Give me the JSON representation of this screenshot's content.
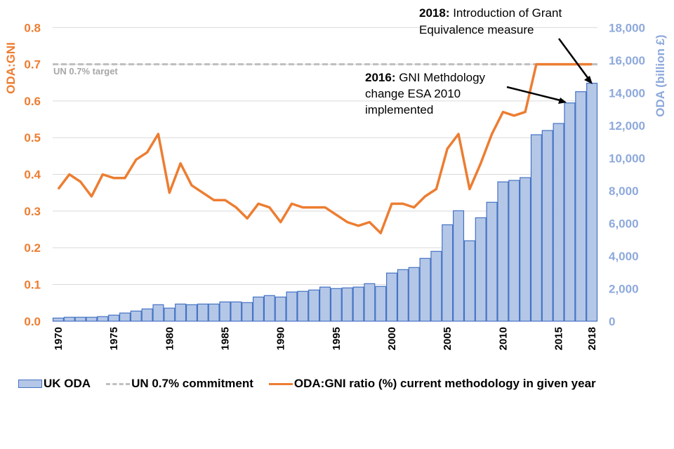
{
  "chart_data": {
    "type": "bar+line",
    "title": "",
    "x": [
      1970,
      1971,
      1972,
      1973,
      1974,
      1975,
      1976,
      1977,
      1978,
      1979,
      1980,
      1981,
      1982,
      1983,
      1984,
      1985,
      1986,
      1987,
      1988,
      1989,
      1990,
      1991,
      1992,
      1993,
      1994,
      1995,
      1996,
      1997,
      1998,
      1999,
      2000,
      2001,
      2002,
      2003,
      2004,
      2005,
      2006,
      2007,
      2008,
      2009,
      2010,
      2011,
      2012,
      2013,
      2014,
      2015,
      2016,
      2017,
      2018
    ],
    "x_tick_labels": [
      "1970",
      "1975",
      "1980",
      "1985",
      "1990",
      "1995",
      "2000",
      "2005",
      "2010",
      "2015",
      "2018"
    ],
    "series": [
      {
        "name": "UK ODA",
        "type": "bar",
        "axis": "right",
        "color": "#B4C7E7",
        "edge_color": "#4472C4",
        "values": [
          190,
          240,
          240,
          240,
          280,
          370,
          500,
          620,
          750,
          1010,
          800,
          1050,
          1010,
          1050,
          1050,
          1180,
          1180,
          1140,
          1480,
          1570,
          1480,
          1790,
          1830,
          1910,
          2090,
          2000,
          2040,
          2090,
          2300,
          2130,
          2950,
          3160,
          3290,
          3850,
          4280,
          5910,
          6770,
          4930,
          6340,
          7290,
          8540,
          8630,
          8800,
          11430,
          11690,
          12120,
          13380,
          14070,
          14590
        ]
      },
      {
        "name": "UN 0.7% commitment",
        "type": "line-dashed",
        "axis": "left",
        "color": "#BFBFBF",
        "values": [
          0.7
        ]
      },
      {
        "name": "ODA:GNI ratio (%) current methodology in given year",
        "type": "line",
        "axis": "left",
        "color": "#ED7D31",
        "values": [
          0.36,
          0.4,
          0.38,
          0.34,
          0.4,
          0.39,
          0.39,
          0.44,
          0.46,
          0.51,
          0.35,
          0.43,
          0.37,
          0.35,
          0.33,
          0.33,
          0.31,
          0.28,
          0.32,
          0.31,
          0.27,
          0.32,
          0.31,
          0.31,
          0.31,
          0.29,
          0.27,
          0.26,
          0.27,
          0.24,
          0.32,
          0.32,
          0.31,
          0.34,
          0.36,
          0.47,
          0.51,
          0.36,
          0.43,
          0.51,
          0.57,
          0.56,
          0.57,
          0.7,
          0.7,
          0.7,
          0.7,
          0.7,
          0.7
        ]
      }
    ],
    "y_left": {
      "label": "ODA:GNI",
      "range": [
        0,
        0.8
      ],
      "ticks": [
        "0.0",
        "0.1",
        "0.2",
        "0.3",
        "0.4",
        "0.5",
        "0.6",
        "0.7",
        "0.8"
      ],
      "color": "#ED7D31"
    },
    "y_right": {
      "label": "ODA (billion £)",
      "range": [
        0,
        18000
      ],
      "ticks": [
        "0",
        "2,000",
        "4,000",
        "6,000",
        "8,000",
        "10,000",
        "12,000",
        "14,000",
        "16,000",
        "18,000"
      ],
      "color": "#8EA9DB"
    },
    "grid": true,
    "legend_position": "bottom-left",
    "annotations": [
      {
        "bold": "2018:",
        "text_lines": [
          " Introduction of Grant",
          "Equivalence measure"
        ],
        "points_to_year": 2018
      },
      {
        "bold": "2016:",
        "text_lines": [
          " GNI Methdology",
          "change ESA 2010",
          "implemented"
        ],
        "points_to_year": 2016
      },
      {
        "text": "UN 0.7% target"
      }
    ]
  },
  "legend": {
    "items": [
      {
        "label": "UK ODA",
        "kind": "bar"
      },
      {
        "label": "UN 0.7% commitment",
        "kind": "dash"
      },
      {
        "label": "ODA:GNI ratio (%) current methodology in given year",
        "kind": "line"
      }
    ]
  }
}
